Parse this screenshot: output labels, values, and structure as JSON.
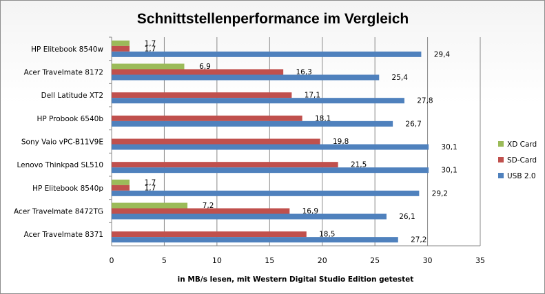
{
  "chart_data": {
    "type": "bar",
    "orientation": "horizontal",
    "title": "Schnittstellenperformance im Vergleich",
    "xlabel": "in MB/s  lesen, mit Western Digital Studio Edition getestet",
    "ylabel": "",
    "xlim": [
      0,
      35
    ],
    "xticks": [
      0,
      5,
      10,
      15,
      20,
      25,
      30,
      35
    ],
    "grid": true,
    "legend_position": "right",
    "categories": [
      "HP Elitebook 8540w",
      "Acer Travelmate 8172",
      "Dell Latitude  XT2",
      "HP Probook 6540b",
      "Sony Vaio vPC-B11V9E",
      "Lenovo Thinkpad SL510",
      "HP Elitebook 8540p",
      "Acer Travelmate 8472TG",
      "Acer Travelmate 8371"
    ],
    "series": [
      {
        "name": "XD Card",
        "color": "#9bbb59",
        "values": [
          1.7,
          6.9,
          null,
          null,
          null,
          null,
          1.7,
          7.2,
          null
        ],
        "labels": [
          "1,7",
          "6,9",
          "",
          "",
          "",
          "",
          "1,7",
          "7,2",
          ""
        ]
      },
      {
        "name": "SD-Card",
        "color": "#c0504d",
        "values": [
          1.7,
          16.3,
          17.1,
          18.1,
          19.8,
          21.5,
          1.7,
          16.9,
          18.5
        ],
        "labels": [
          "1,7",
          "16,3",
          "17,1",
          "18,1",
          "19,8",
          "21,5",
          "1,7",
          "16,9",
          "18,5"
        ]
      },
      {
        "name": "USB 2.0",
        "color": "#4f81bd",
        "values": [
          29.4,
          25.4,
          27.8,
          26.7,
          30.1,
          30.1,
          29.2,
          26.1,
          27.2
        ],
        "labels": [
          "29,4",
          "25,4",
          "27,8",
          "26,7",
          "30,1",
          "30,1",
          "29,2",
          "26,1",
          "27,2"
        ]
      }
    ],
    "legend_order": [
      "XD Card",
      "SD-Card",
      "USB 2.0"
    ]
  }
}
